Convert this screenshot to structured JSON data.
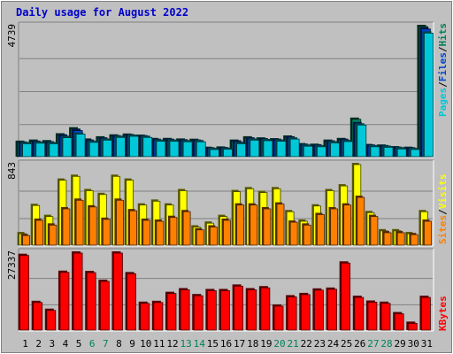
{
  "title": "Daily usage for August 2022",
  "colors": {
    "background": "#c0c0c0",
    "title": "#0000cc",
    "hits": "#00805c",
    "files": "#0044cc",
    "pages": "#00c8d8",
    "visits": "#ffff00",
    "sites": "#ff8000",
    "kbytes": "#ff0000",
    "weekend_label": "#00805c"
  },
  "chart_data": [
    {
      "type": "bar",
      "panel": "hits_files_pages",
      "ylabel_max": "4739",
      "ylim": [
        0,
        4739
      ],
      "legend": [
        "Pages",
        "Files",
        "Hits"
      ],
      "categories": [
        "1",
        "2",
        "3",
        "4",
        "5",
        "6",
        "7",
        "8",
        "9",
        "10",
        "11",
        "12",
        "13",
        "14",
        "15",
        "16",
        "17",
        "18",
        "19",
        "20",
        "21",
        "22",
        "23",
        "24",
        "25",
        "26",
        "27",
        "28",
        "29",
        "30",
        "31"
      ],
      "series": [
        {
          "name": "Hits",
          "values": [
            520,
            560,
            540,
            790,
            1010,
            600,
            680,
            750,
            780,
            740,
            620,
            620,
            600,
            590,
            300,
            310,
            560,
            680,
            640,
            610,
            710,
            430,
            410,
            560,
            620,
            1360,
            400,
            380,
            320,
            300,
            4739
          ]
        },
        {
          "name": "Files",
          "values": [
            490,
            520,
            500,
            750,
            950,
            560,
            640,
            720,
            760,
            720,
            590,
            590,
            570,
            560,
            280,
            290,
            530,
            640,
            610,
            590,
            680,
            410,
            390,
            530,
            590,
            1200,
            380,
            360,
            300,
            280,
            4650
          ]
        },
        {
          "name": "Pages",
          "values": [
            470,
            490,
            470,
            690,
            820,
            520,
            600,
            700,
            740,
            700,
            560,
            560,
            540,
            540,
            260,
            270,
            470,
            600,
            580,
            560,
            640,
            380,
            360,
            500,
            550,
            1150,
            360,
            340,
            280,
            260,
            4500
          ]
        }
      ]
    },
    {
      "type": "bar",
      "panel": "visits_sites",
      "ylabel_max": "843",
      "ylim": [
        0,
        843
      ],
      "legend": [
        "Sites",
        "Visits"
      ],
      "categories": [
        "1",
        "2",
        "3",
        "4",
        "5",
        "6",
        "7",
        "8",
        "9",
        "10",
        "11",
        "12",
        "13",
        "14",
        "15",
        "16",
        "17",
        "18",
        "19",
        "20",
        "21",
        "22",
        "23",
        "24",
        "25",
        "26",
        "27",
        "28",
        "29",
        "30",
        "31"
      ],
      "series": [
        {
          "name": "Visits",
          "values": [
            120,
            415,
            300,
            680,
            720,
            570,
            530,
            720,
            680,
            420,
            460,
            420,
            570,
            190,
            230,
            300,
            560,
            590,
            550,
            590,
            350,
            250,
            410,
            570,
            620,
            843,
            340,
            150,
            150,
            120,
            350
          ]
        },
        {
          "name": "Sites",
          "values": [
            100,
            260,
            210,
            380,
            470,
            400,
            270,
            470,
            360,
            260,
            250,
            290,
            350,
            160,
            190,
            260,
            420,
            420,
            380,
            430,
            240,
            210,
            320,
            380,
            420,
            500,
            300,
            130,
            130,
            110,
            250
          ]
        }
      ]
    },
    {
      "type": "bar",
      "panel": "kbytes",
      "ylabel_max": "27337",
      "ylim": [
        0,
        27337
      ],
      "legend": [
        "KBytes"
      ],
      "categories": [
        "1",
        "2",
        "3",
        "4",
        "5",
        "6",
        "7",
        "8",
        "9",
        "10",
        "11",
        "12",
        "13",
        "14",
        "15",
        "16",
        "17",
        "18",
        "19",
        "20",
        "21",
        "22",
        "23",
        "24",
        "25",
        "26",
        "27",
        "28",
        "29",
        "30",
        "31"
      ],
      "series": [
        {
          "name": "KBytes",
          "values": [
            26500,
            9800,
            7000,
            20500,
            27337,
            20400,
            17300,
            27337,
            20000,
            9500,
            9800,
            13000,
            14300,
            12200,
            14000,
            14000,
            15600,
            14300,
            15000,
            8500,
            11800,
            12600,
            14200,
            14500,
            23800,
            11600,
            9900,
            9500,
            5800,
            2400,
            11600
          ]
        }
      ]
    }
  ],
  "x_axis": {
    "labels": [
      "1",
      "2",
      "3",
      "4",
      "5",
      "6",
      "7",
      "8",
      "9",
      "10",
      "11",
      "12",
      "13",
      "14",
      "15",
      "16",
      "17",
      "18",
      "19",
      "20",
      "21",
      "22",
      "23",
      "24",
      "25",
      "26",
      "27",
      "28",
      "29",
      "30",
      "31"
    ],
    "weekend_days": [
      "6",
      "7",
      "13",
      "14",
      "20",
      "21",
      "27",
      "28"
    ]
  }
}
